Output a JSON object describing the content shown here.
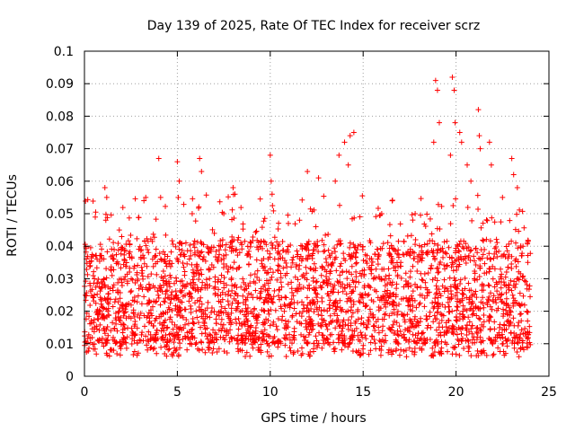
{
  "chart_data": {
    "type": "scatter",
    "title": "Day 139 of 2025, Rate Of TEC Index for receiver scrz",
    "xlabel": "GPS time / hours",
    "ylabel": "ROTI / TECUs",
    "xlim": [
      0,
      25
    ],
    "ylim": [
      0,
      0.1
    ],
    "x_ticks": [
      "0",
      "5",
      "10",
      "15",
      "20",
      "25"
    ],
    "y_ticks": [
      "0",
      "0.01",
      "0.02",
      "0.03",
      "0.04",
      "0.05",
      "0.06",
      "0.07",
      "0.08",
      "0.09",
      "0.1"
    ],
    "grid": true,
    "marker": "plus",
    "color": "#ff0000",
    "series": [
      {
        "x_range": [
          0,
          24
        ],
        "baseline_band": [
          0.01,
          0.03
        ],
        "outliers": [
          [
            1.1,
            0.058
          ],
          [
            1.2,
            0.055
          ],
          [
            1.15,
            0.048
          ],
          [
            3.2,
            0.054
          ],
          [
            3.3,
            0.055
          ],
          [
            4.0,
            0.067
          ],
          [
            4.1,
            0.055
          ],
          [
            5.0,
            0.066
          ],
          [
            5.1,
            0.06
          ],
          [
            5.05,
            0.055
          ],
          [
            5.8,
            0.05
          ],
          [
            6.2,
            0.067
          ],
          [
            6.3,
            0.063
          ],
          [
            7.5,
            0.05
          ],
          [
            8.0,
            0.058
          ],
          [
            8.1,
            0.056
          ],
          [
            10.0,
            0.068
          ],
          [
            10.05,
            0.06
          ],
          [
            10.1,
            0.056
          ],
          [
            12.0,
            0.063
          ],
          [
            12.6,
            0.061
          ],
          [
            13.7,
            0.068
          ],
          [
            14.0,
            0.072
          ],
          [
            14.3,
            0.074
          ],
          [
            14.5,
            0.075
          ],
          [
            14.2,
            0.065
          ],
          [
            13.5,
            0.06
          ],
          [
            16.0,
            0.05
          ],
          [
            18.9,
            0.091
          ],
          [
            19.0,
            0.088
          ],
          [
            19.1,
            0.078
          ],
          [
            18.8,
            0.072
          ],
          [
            19.8,
            0.092
          ],
          [
            19.9,
            0.088
          ],
          [
            19.95,
            0.078
          ],
          [
            20.2,
            0.075
          ],
          [
            20.3,
            0.072
          ],
          [
            19.7,
            0.068
          ],
          [
            21.2,
            0.082
          ],
          [
            21.25,
            0.074
          ],
          [
            21.3,
            0.07
          ],
          [
            21.8,
            0.072
          ],
          [
            21.9,
            0.065
          ],
          [
            23.0,
            0.067
          ],
          [
            23.1,
            0.062
          ],
          [
            23.3,
            0.058
          ],
          [
            22.5,
            0.055
          ],
          [
            17.8,
            0.05
          ],
          [
            20.6,
            0.065
          ],
          [
            20.8,
            0.06
          ]
        ]
      }
    ]
  }
}
